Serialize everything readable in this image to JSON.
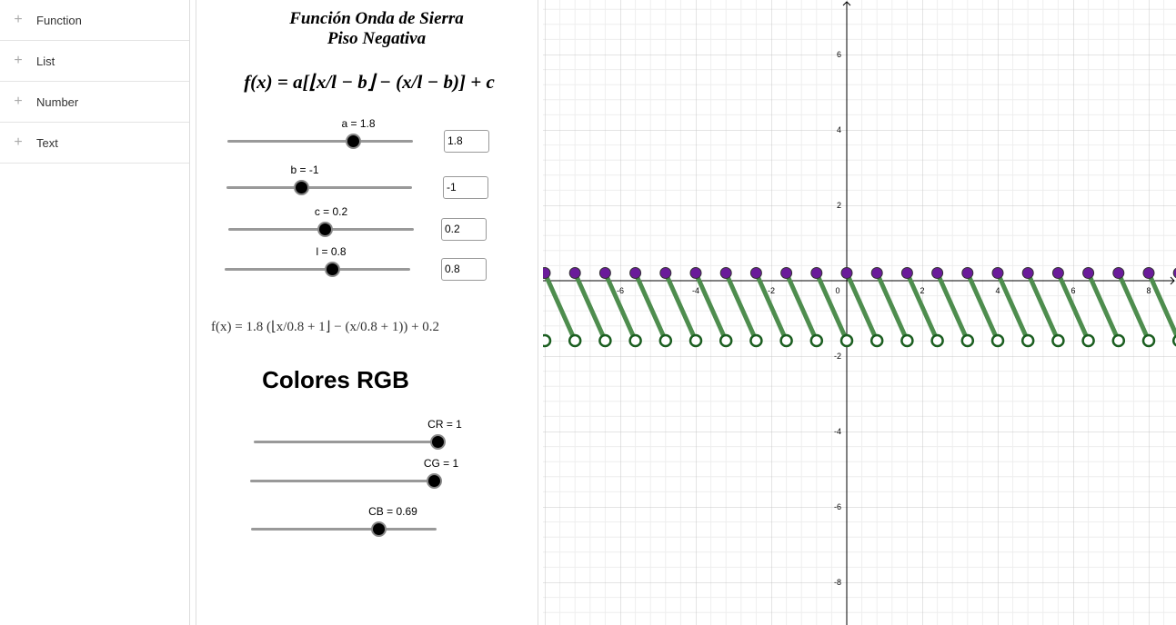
{
  "sidebar": {
    "items": [
      "Function",
      "List",
      "Number",
      "Text"
    ]
  },
  "panel": {
    "title_line1": "Función Onda de Sierra",
    "title_line2": "Piso Negativa",
    "formula": "f(x) = a[⌊x/l − b⌋ − (x/l − b)] + c",
    "sliders": [
      {
        "label": "a = 1.8",
        "input": "1.8"
      },
      {
        "label": "b = -1",
        "input": "-1"
      },
      {
        "label": "c = 0.2",
        "input": "0.2"
      },
      {
        "label": "l = 0.8",
        "input": "0.8"
      }
    ],
    "result": "f(x) = 1.8 (⌊x/0.8 + 1⌋ − (x/0.8 + 1)) + 0.2",
    "rgb_title": "Colores RGB",
    "rgb_sliders": [
      "CR = 1",
      "CG = 1",
      "CB = 0.69"
    ]
  },
  "graph": {
    "xticks": [
      -6,
      -4,
      -2,
      0,
      2,
      4,
      6,
      8
    ],
    "yticks": [
      6,
      4,
      2,
      -2,
      -4,
      -6,
      -8
    ]
  }
}
